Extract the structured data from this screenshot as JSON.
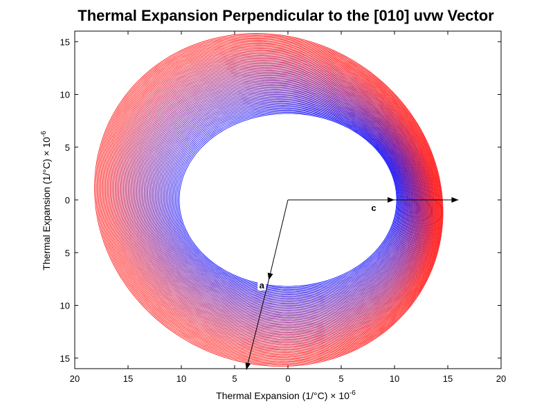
{
  "chart_data": {
    "type": "line",
    "title": "Thermal Expansion Perpendicular to the [010] uvw Vector",
    "xlabel": "Thermal Expansion (1/°C) × 10",
    "xlabel_exponent": "-6",
    "ylabel": "Thermal Expansion (1/°C) × 10",
    "ylabel_exponent": "-6",
    "xlim": [
      -20,
      20
    ],
    "ylim": [
      -16,
      16
    ],
    "x_ticks": [
      -20,
      -15,
      -10,
      -5,
      0,
      5,
      10,
      15,
      20
    ],
    "x_tick_labels": [
      "20",
      "15",
      "10",
      "5",
      "0",
      "5",
      "10",
      "15",
      "20"
    ],
    "y_ticks": [
      15,
      10,
      5,
      0,
      -5,
      -10,
      -15
    ],
    "y_tick_labels": [
      "15",
      "10",
      "5",
      "0",
      "5",
      "10",
      "15"
    ],
    "grid": false,
    "family": {
      "count": 70,
      "inner_ellipse": {
        "cx": 0.0,
        "cy": 0.0,
        "a": 10.2,
        "b": 8.2,
        "rotation_deg": 0
      },
      "outer_ellipse": {
        "cx": -1.8,
        "cy": 0.0,
        "a": 16.7,
        "b": 15.4,
        "rotation_deg": -32
      },
      "color_inner": "#0000ff",
      "color_outer": "#ff0000"
    },
    "arrows": [
      {
        "label": "c",
        "from": [
          0,
          0
        ],
        "to": [
          10,
          0
        ]
      },
      {
        "label": "",
        "from": [
          10,
          0
        ],
        "to": [
          16,
          0
        ]
      },
      {
        "label": "a",
        "from": [
          0,
          0
        ],
        "to": [
          -1.8,
          -7.6
        ]
      },
      {
        "label": "",
        "from": [
          -1.8,
          -7.6
        ],
        "to": [
          -3.9,
          -16.1
        ]
      }
    ]
  }
}
